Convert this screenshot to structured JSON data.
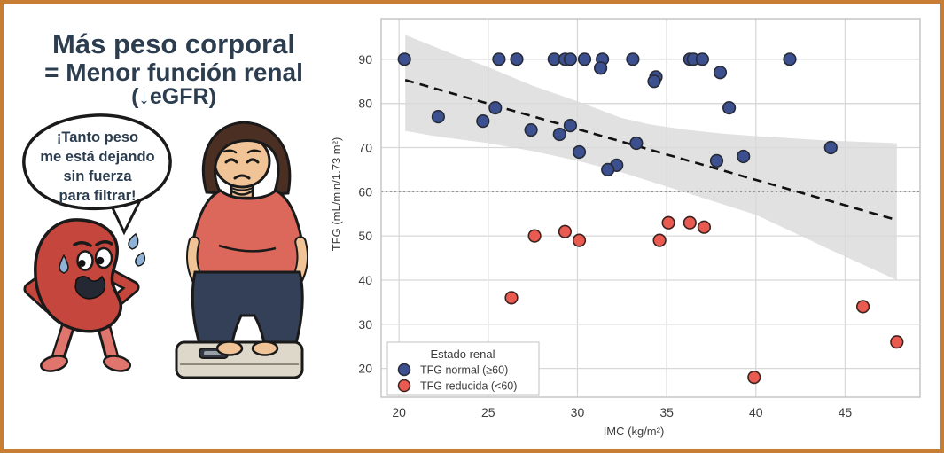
{
  "frame": {
    "border_color": "#c87d35",
    "background": "#ffffff"
  },
  "left_panel": {
    "title_line1": "Más peso corporal",
    "title_line2": "= Menor función renal",
    "title_line3": "(↓eGFR)",
    "title_color": "#2c3d4f",
    "speech_bubble": {
      "lines": [
        "¡Tanto peso",
        "me está dejando",
        "sin fuerza",
        "para filtrar!"
      ]
    },
    "illustration": {
      "kidney_body_color": "#c5463d",
      "kidney_leg_color": "#df756c",
      "sweat_drop_color": "#8fb3d6",
      "woman_shirt_color": "#dc685c",
      "woman_pants_color": "#334058",
      "woman_skin_color": "#f1c497",
      "woman_hair_color": "#4a2f22",
      "scale_color": "#ddd8c9"
    }
  },
  "chart_data": {
    "type": "scatter",
    "xlabel": "IMC (kg/m²)",
    "ylabel": "TFG (mL/min/1.73 m²)",
    "xlim": [
      19.0,
      49.2
    ],
    "ylim": [
      13.5,
      99.2
    ],
    "xticks": [
      20,
      25,
      30,
      35,
      40,
      45
    ],
    "yticks": [
      20,
      30,
      40,
      50,
      60,
      70,
      80,
      90
    ],
    "grid": true,
    "colors": {
      "grid": "#d8d8d8",
      "plot_border": "#c6c6c6",
      "band": "#d9d9d9",
      "threshold": "#8c8c8c"
    },
    "threshold_line": {
      "y": 60,
      "style": "dotted"
    },
    "legend": {
      "title": "Estado renal",
      "position": "lower-left"
    },
    "series": [
      {
        "name": "TFG normal (≥60)",
        "color": "#3c4f8e",
        "edge": "#262b38",
        "points": [
          [
            20.3,
            90
          ],
          [
            25.6,
            90
          ],
          [
            26.6,
            90
          ],
          [
            28.7,
            90
          ],
          [
            29.3,
            90
          ],
          [
            29.6,
            90
          ],
          [
            30.4,
            90
          ],
          [
            31.4,
            90
          ],
          [
            33.1,
            90
          ],
          [
            36.3,
            90
          ],
          [
            36.5,
            90
          ],
          [
            37.0,
            90
          ],
          [
            41.9,
            90
          ],
          [
            31.3,
            88
          ],
          [
            38.0,
            87
          ],
          [
            34.4,
            86
          ],
          [
            34.3,
            85
          ],
          [
            25.4,
            79
          ],
          [
            38.5,
            79
          ],
          [
            22.2,
            77
          ],
          [
            24.7,
            76
          ],
          [
            29.6,
            75
          ],
          [
            27.4,
            74
          ],
          [
            29.0,
            73
          ],
          [
            33.3,
            71
          ],
          [
            44.2,
            70
          ],
          [
            30.1,
            69
          ],
          [
            39.3,
            68
          ],
          [
            37.8,
            67
          ],
          [
            32.2,
            66
          ],
          [
            31.7,
            65
          ]
        ]
      },
      {
        "name": "TFG reducida (<60)",
        "color": "#e95a50",
        "edge": "#3c2320",
        "points": [
          [
            35.1,
            53
          ],
          [
            36.3,
            53
          ],
          [
            37.1,
            52
          ],
          [
            29.3,
            51
          ],
          [
            27.6,
            50
          ],
          [
            30.1,
            49
          ],
          [
            34.6,
            49
          ],
          [
            26.3,
            36
          ],
          [
            46.0,
            34
          ],
          [
            47.9,
            26
          ],
          [
            39.9,
            18
          ]
        ]
      }
    ],
    "trend_line": {
      "style": "dashed",
      "color": "#111111",
      "from": [
        20.35,
        85.3
      ],
      "to": [
        47.9,
        53.6
      ]
    },
    "confidence_band": {
      "upper": [
        [
          20.35,
          95.5
        ],
        [
          23,
          91.2
        ],
        [
          25,
          88.2
        ],
        [
          27.5,
          84
        ],
        [
          30,
          80.5
        ],
        [
          32.4,
          76.8
        ],
        [
          34,
          75.3
        ],
        [
          36,
          74.1
        ],
        [
          38,
          73.2
        ],
        [
          40,
          72.6
        ],
        [
          44,
          71.6
        ],
        [
          47.9,
          71
        ]
      ],
      "lower": [
        [
          20.35,
          73.8
        ],
        [
          22,
          72.6
        ],
        [
          25,
          71
        ],
        [
          27.5,
          69.2
        ],
        [
          30,
          67
        ],
        [
          32.4,
          64.5
        ],
        [
          34.5,
          61.8
        ],
        [
          36.7,
          59
        ],
        [
          40,
          54.8
        ],
        [
          44,
          47.2
        ],
        [
          47.9,
          40
        ]
      ]
    }
  }
}
